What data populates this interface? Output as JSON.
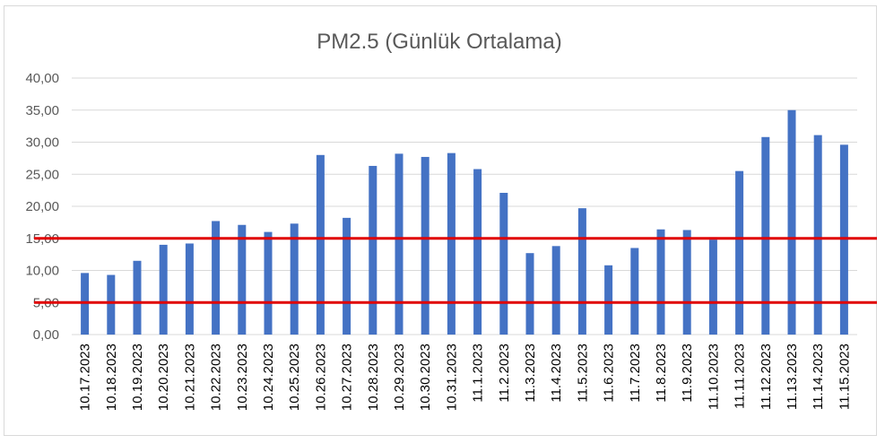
{
  "chart_data": {
    "type": "bar",
    "title": "PM2.5 (Günlük Ortalama)",
    "xlabel": "",
    "ylabel": "",
    "ylim": [
      0,
      40
    ],
    "yticks": [
      "0,00",
      "5,00",
      "10,00",
      "15,00",
      "20,00",
      "25,00",
      "30,00",
      "35,00",
      "40,00"
    ],
    "categories": [
      "10.17.2023",
      "10.18.2023",
      "10.19.2023",
      "10.20.2023",
      "10.21.2023",
      "10.22.2023",
      "10.23.2023",
      "10.24.2023",
      "10.25.2023",
      "10.26.2023",
      "10.27.2023",
      "10.28.2023",
      "10.29.2023",
      "10.30.2023",
      "10.31.2023",
      "11.1.2023",
      "11.2.2023",
      "11.3.2023",
      "11.4.2023",
      "11.5.2023",
      "11.6.2023",
      "11.7.2023",
      "11.8.2023",
      "11.9.2023",
      "11.10.2023",
      "11.11.2023",
      "11.12.2023",
      "11.13.2023",
      "11.14.2023",
      "11.15.2023"
    ],
    "values": [
      9.6,
      9.3,
      11.5,
      14.0,
      14.2,
      17.7,
      17.1,
      16.0,
      17.3,
      28.0,
      18.2,
      26.3,
      28.2,
      27.7,
      28.3,
      25.8,
      22.1,
      12.7,
      13.8,
      19.7,
      10.8,
      13.5,
      16.4,
      16.3,
      14.8,
      25.5,
      30.8,
      35.0,
      31.1,
      29.6
    ],
    "reference_lines": [
      15,
      5
    ],
    "grid": true,
    "legend": "none",
    "colors": {
      "bar": "#4472c4",
      "reference_line": "#e00000",
      "grid": "#d9d9d9"
    }
  }
}
